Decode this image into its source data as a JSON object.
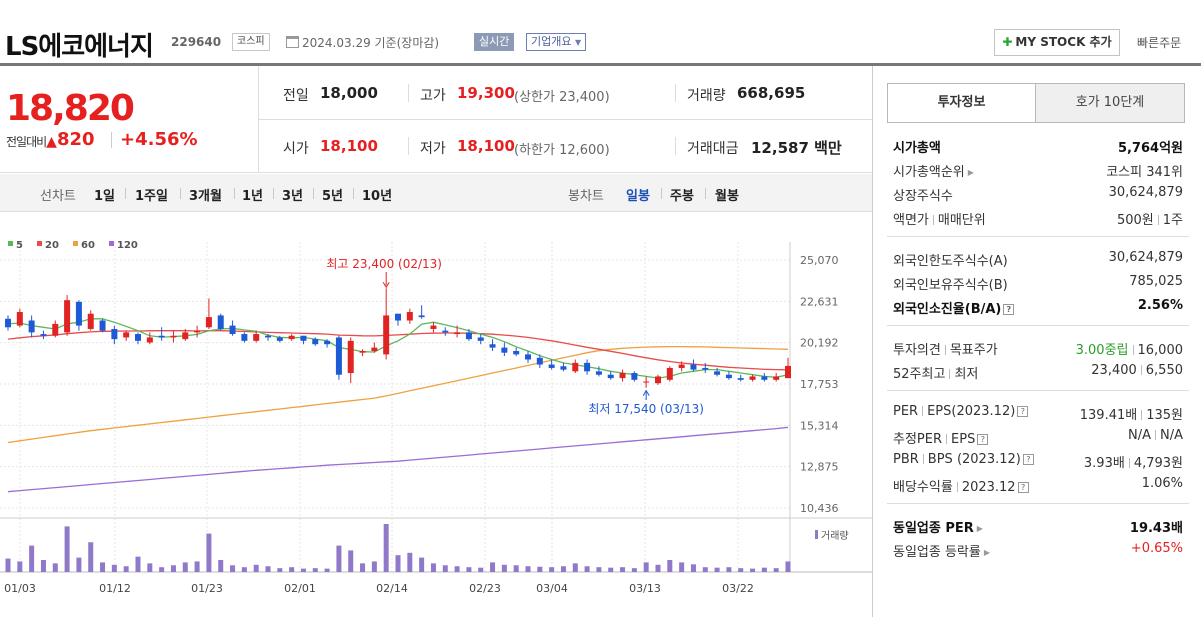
{
  "header": {
    "stock_name": "LS에코에너지",
    "stock_code": "229640",
    "market": "코스피",
    "date_text": "2024.03.29 기준(장마감)",
    "realtime_label": "실시간",
    "overview_label": "기업개요",
    "mystock_label": "MY STOCK 추가",
    "quick_order_label": "빠른주문"
  },
  "price": {
    "current": "18,820",
    "change_label": "전일대비",
    "change_value": "820",
    "change_pct": "+4.56%",
    "prev_label": "전일",
    "prev_value": "18,000",
    "open_label": "시가",
    "open_value": "18,100",
    "high_label": "고가",
    "high_value": "19,300",
    "upper_limit": "(상한가 23,400)",
    "low_label": "저가",
    "low_value": "18,100",
    "lower_limit": "(하한가 12,600)",
    "volume_label": "거래량",
    "volume_value": "668,695",
    "amount_label": "거래대금",
    "amount_value": "12,587",
    "amount_unit": "백만"
  },
  "period_tabs": {
    "label": "선차트",
    "items": [
      "1일",
      "1주일",
      "3개월",
      "1년",
      "3년",
      "5년",
      "10년"
    ],
    "candle_label": "봉차트",
    "candle_items": [
      "일봉",
      "주봉",
      "월봉"
    ],
    "active_candle": "일봉"
  },
  "chart_data": {
    "type": "candlestick",
    "legend": [
      {
        "name": "5",
        "color": "#5cb85c"
      },
      {
        "name": "20",
        "color": "#e94a4a"
      },
      {
        "name": "60",
        "color": "#f0a040"
      },
      {
        "name": "120",
        "color": "#9b6bd6"
      }
    ],
    "y_ticks": [
      "25,070",
      "22,631",
      "20,192",
      "17,753",
      "15,314",
      "12,875",
      "10,436"
    ],
    "ylim": [
      10436,
      25070
    ],
    "x_ticks": [
      "01/03",
      "01/12",
      "01/23",
      "02/01",
      "02/14",
      "02/23",
      "03/04",
      "03/13",
      "03/22"
    ],
    "annotation_high": "최고 23,400 (02/13)",
    "annotation_low": "최저 17,540 (03/13)",
    "volume_label": "거래량",
    "candles": [
      [
        21600,
        21800,
        20900,
        21100
      ],
      [
        21200,
        22200,
        21100,
        22000
      ],
      [
        21500,
        21800,
        20500,
        20800
      ],
      [
        20700,
        20900,
        20400,
        20600
      ],
      [
        20600,
        21500,
        20500,
        21300
      ],
      [
        20800,
        23000,
        20600,
        22700
      ],
      [
        22600,
        22700,
        20900,
        21200
      ],
      [
        21000,
        22100,
        20900,
        21900
      ],
      [
        21500,
        21600,
        20800,
        20900
      ],
      [
        21000,
        21200,
        20100,
        20400
      ],
      [
        20500,
        20900,
        20300,
        20800
      ],
      [
        20700,
        20800,
        20100,
        20300
      ],
      [
        20200,
        20800,
        20100,
        20500
      ],
      [
        20600,
        21100,
        20300,
        20500
      ],
      [
        20500,
        20900,
        20200,
        20600
      ],
      [
        20400,
        21000,
        20300,
        20800
      ],
      [
        20800,
        21200,
        20500,
        20900
      ],
      [
        21100,
        22800,
        21000,
        21700
      ],
      [
        21800,
        21900,
        20900,
        21000
      ],
      [
        21200,
        21500,
        20600,
        20700
      ],
      [
        20700,
        20800,
        20200,
        20300
      ],
      [
        20300,
        20900,
        20200,
        20700
      ],
      [
        20600,
        20700,
        20300,
        20500
      ],
      [
        20500,
        20600,
        20200,
        20300
      ],
      [
        20400,
        20700,
        20300,
        20600
      ],
      [
        20600,
        20600,
        20100,
        20300
      ],
      [
        20400,
        20500,
        20000,
        20100
      ],
      [
        20300,
        20400,
        19900,
        20100
      ],
      [
        20500,
        20600,
        18000,
        18300
      ],
      [
        18400,
        20500,
        17800,
        20300
      ],
      [
        19600,
        19800,
        19400,
        19700
      ],
      [
        19700,
        20200,
        19600,
        19900
      ],
      [
        19500,
        23400,
        19200,
        21800
      ],
      [
        21900,
        21900,
        21200,
        21500
      ],
      [
        21500,
        22200,
        21300,
        22000
      ],
      [
        21800,
        22400,
        21600,
        21700
      ],
      [
        21000,
        21400,
        20800,
        21200
      ],
      [
        20900,
        21100,
        20600,
        20800
      ],
      [
        20700,
        21200,
        20500,
        20800
      ],
      [
        20800,
        21000,
        20300,
        20400
      ],
      [
        20500,
        20700,
        20100,
        20300
      ],
      [
        20100,
        20400,
        19700,
        19900
      ],
      [
        19900,
        20200,
        19400,
        19600
      ],
      [
        19700,
        19900,
        19400,
        19500
      ],
      [
        19500,
        19700,
        19000,
        19200
      ],
      [
        19300,
        19500,
        18700,
        18900
      ],
      [
        18900,
        19200,
        18600,
        18700
      ],
      [
        18800,
        19000,
        18500,
        18600
      ],
      [
        18500,
        19200,
        18400,
        19000
      ],
      [
        19000,
        19200,
        18300,
        18500
      ],
      [
        18500,
        18800,
        18200,
        18300
      ],
      [
        18300,
        18500,
        18000,
        18100
      ],
      [
        18100,
        18600,
        17900,
        18400
      ],
      [
        18400,
        18500,
        17900,
        18000
      ],
      [
        17900,
        18200,
        17540,
        17900
      ],
      [
        17800,
        18300,
        17700,
        18200
      ],
      [
        18000,
        18800,
        17900,
        18700
      ],
      [
        18700,
        19100,
        18500,
        18900
      ],
      [
        18900,
        19200,
        18500,
        18600
      ],
      [
        18700,
        19000,
        18400,
        18600
      ],
      [
        18500,
        18700,
        18200,
        18300
      ],
      [
        18300,
        18500,
        18000,
        18100
      ],
      [
        18100,
        18300,
        17900,
        18000
      ],
      [
        18000,
        18300,
        17900,
        18200
      ],
      [
        18200,
        18400,
        17900,
        18000
      ],
      [
        18000,
        18400,
        17900,
        18200
      ],
      [
        18100,
        19300,
        18100,
        18820
      ]
    ],
    "volumes": [
      0.28,
      0.22,
      0.55,
      0.25,
      0.18,
      0.95,
      0.3,
      0.62,
      0.2,
      0.15,
      0.12,
      0.32,
      0.18,
      0.1,
      0.14,
      0.2,
      0.22,
      0.8,
      0.25,
      0.14,
      0.1,
      0.15,
      0.12,
      0.08,
      0.1,
      0.07,
      0.08,
      0.07,
      0.55,
      0.45,
      0.18,
      0.22,
      1.0,
      0.35,
      0.4,
      0.3,
      0.18,
      0.14,
      0.12,
      0.1,
      0.09,
      0.2,
      0.15,
      0.14,
      0.12,
      0.11,
      0.1,
      0.12,
      0.18,
      0.12,
      0.1,
      0.09,
      0.1,
      0.08,
      0.2,
      0.15,
      0.25,
      0.2,
      0.16,
      0.1,
      0.09,
      0.1,
      0.08,
      0.07,
      0.09,
      0.08,
      0.22
    ],
    "ma5": [
      21300,
      21350,
      21200,
      21100,
      21000,
      21300,
      21400,
      21600,
      21600,
      21400,
      21150,
      20900,
      20600,
      20520,
      20550,
      20600,
      20680,
      20900,
      21000,
      21040,
      20940,
      20860,
      20640,
      20500,
      20480,
      20500,
      20400,
      20300,
      19900,
      19800,
      19660,
      19640,
      20000,
      20300,
      20700,
      21280,
      21400,
      21240,
      21080,
      20900,
      20700,
      20500,
      20250,
      19950,
      19700,
      19420,
      19200,
      19000,
      18880,
      18780,
      18650,
      18500,
      18400,
      18300,
      18200,
      18100,
      18200,
      18400,
      18500,
      18600,
      18600,
      18500,
      18400,
      18300,
      18200,
      18150,
      18300
    ],
    "ma20": [
      20400,
      20480,
      20550,
      20600,
      20650,
      20720,
      20780,
      20830,
      20860,
      20870,
      20880,
      20880,
      20890,
      20900,
      20900,
      20900,
      20880,
      20900,
      20900,
      20880,
      20850,
      20830,
      20800,
      20780,
      20760,
      20740,
      20720,
      20700,
      20640,
      20620,
      20600,
      20590,
      20620,
      20650,
      20690,
      20730,
      20750,
      20760,
      20760,
      20750,
      20720,
      20690,
      20640,
      20580,
      20500,
      20400,
      20300,
      20180,
      20050,
      19920,
      19800,
      19680,
      19560,
      19420,
      19300,
      19180,
      19080,
      18990,
      18920,
      18860,
      18800,
      18740,
      18700,
      18660,
      18620,
      18600,
      18590
    ],
    "ma60": [
      14300,
      14400,
      14500,
      14600,
      14700,
      14800,
      14900,
      15000,
      15080,
      15160,
      15240,
      15320,
      15400,
      15480,
      15560,
      15640,
      15720,
      15800,
      15880,
      15960,
      16040,
      16120,
      16200,
      16280,
      16360,
      16440,
      16520,
      16600,
      16680,
      16760,
      16840,
      16920,
      17050,
      17200,
      17350,
      17500,
      17650,
      17800,
      17950,
      18100,
      18250,
      18400,
      18550,
      18700,
      18850,
      19000,
      19150,
      19300,
      19450,
      19600,
      19720,
      19800,
      19860,
      19900,
      19930,
      19950,
      19960,
      19960,
      19950,
      19940,
      19920,
      19900,
      19880,
      19860,
      19840,
      19820,
      19800
    ],
    "ma120": [
      11400,
      11460,
      11520,
      11580,
      11640,
      11700,
      11760,
      11820,
      11880,
      11940,
      12000,
      12060,
      12120,
      12180,
      12240,
      12300,
      12360,
      12420,
      12480,
      12540,
      12600,
      12660,
      12710,
      12760,
      12810,
      12860,
      12910,
      12960,
      13000,
      13040,
      13080,
      13120,
      13160,
      13200,
      13260,
      13320,
      13380,
      13440,
      13500,
      13560,
      13620,
      13680,
      13740,
      13800,
      13860,
      13920,
      13980,
      14040,
      14100,
      14160,
      14220,
      14280,
      14340,
      14400,
      14460,
      14520,
      14580,
      14640,
      14700,
      14760,
      14820,
      14880,
      14940,
      15000,
      15060,
      15120,
      15200
    ]
  },
  "right_panel": {
    "tab_active": "투자정보",
    "tab_inactive": "호가 10단계",
    "rows_a": [
      {
        "label": "시가총액",
        "value": "5,764억원"
      },
      {
        "label": "시가총액순위",
        "value": "코스피 341위"
      },
      {
        "label": "상장주식수",
        "value": "30,624,879"
      },
      {
        "label": "액면가",
        "label2": "매매단위",
        "value": "500원",
        "value2": "1주"
      }
    ],
    "rows_b": [
      {
        "label": "외국인한도주식수(A)",
        "value": "30,624,879"
      },
      {
        "label": "외국인보유주식수(B)",
        "value": "785,025"
      },
      {
        "label": "외국인소진율(B/A)",
        "value": "2.56%"
      }
    ],
    "rows_c": [
      {
        "label": "투자의견",
        "label2": "목표주가",
        "value": "3.00중립",
        "value2": "16,000"
      },
      {
        "label": "52주최고",
        "label2": "최저",
        "value": "23,400",
        "value2": "6,550"
      }
    ],
    "rows_d": [
      {
        "label": "PER",
        "label2": "EPS(2023.12)",
        "value": "139.41배",
        "value2": "135원"
      },
      {
        "label": "추정PER",
        "label2": "EPS",
        "value": "N/A",
        "value2": "N/A"
      },
      {
        "label": "PBR",
        "label2": "BPS (2023.12)",
        "value": "3.93배",
        "value2": "4,793원"
      },
      {
        "label": "배당수익률",
        "label2": "2023.12",
        "value": "1.06%"
      }
    ],
    "rows_e": [
      {
        "label": "동일업종 PER",
        "value": "19.43배"
      },
      {
        "label": "동일업종 등락률",
        "value": "+0.65%"
      }
    ]
  }
}
